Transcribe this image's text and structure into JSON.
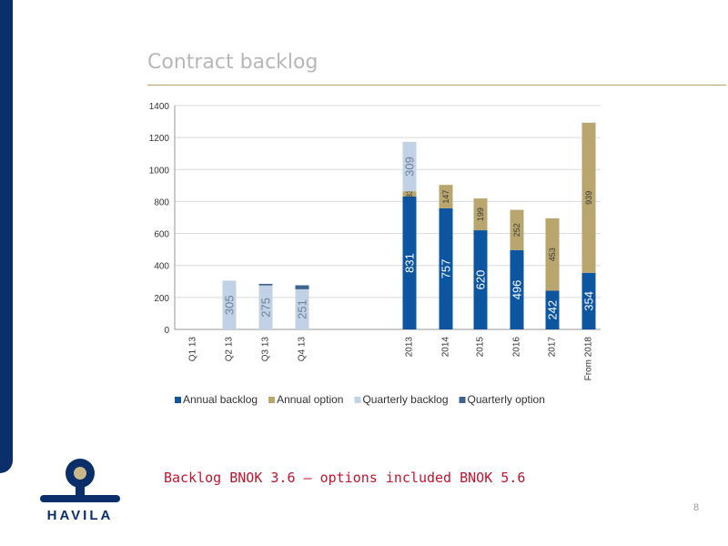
{
  "slide": {
    "title": "Contract backlog",
    "summary": "Backlog BNOK 3.6 – options included BNOK 5.6",
    "page_number": "8",
    "logo_text": "HAVILA"
  },
  "colors": {
    "left_bar": "#0b2f6b",
    "annual_backlog": "#0c55a0",
    "annual_option": "#b8a66e",
    "quarterly_backlog": "#c2d2e6",
    "quarterly_option": "#3f6390",
    "summary_text": "#c0152f",
    "title_rule": "#b9a66a"
  },
  "chart_data": {
    "type": "bar",
    "stacked": true,
    "categories": [
      "Q1 13",
      "Q2 13",
      "Q3 13",
      "Q4 13",
      "2013",
      "2014",
      "2015",
      "2016",
      "2017",
      "From 2018"
    ],
    "series": [
      {
        "name": "Annual backlog",
        "values": [
          0,
          0,
          0,
          0,
          831,
          757,
          620,
          496,
          242,
          354
        ],
        "labels": [
          null,
          null,
          null,
          null,
          "831",
          "757",
          "620",
          "496",
          "242",
          "354"
        ]
      },
      {
        "name": "Annual option",
        "values": [
          0,
          0,
          0,
          0,
          33,
          147,
          199,
          252,
          453,
          939
        ],
        "labels": [
          null,
          null,
          null,
          null,
          "33",
          "147",
          "199",
          "252",
          "453",
          "939"
        ]
      },
      {
        "name": "Quarterly backlog",
        "values": [
          0,
          305,
          275,
          251,
          309,
          0,
          0,
          0,
          0,
          0
        ],
        "labels": [
          null,
          "305",
          "275",
          "251",
          "309",
          null,
          null,
          null,
          null,
          null
        ]
      },
      {
        "name": "Quarterly option",
        "values": [
          0,
          0,
          10,
          25,
          0,
          0,
          0,
          0,
          0,
          0
        ],
        "labels": [
          null,
          null,
          null,
          null,
          null,
          null,
          null,
          null,
          null,
          null
        ]
      }
    ],
    "ylim": [
      0,
      1400
    ],
    "yticks": [
      0,
      200,
      400,
      600,
      800,
      1000,
      1200,
      1400
    ],
    "grid": true,
    "legend": "bottom"
  }
}
